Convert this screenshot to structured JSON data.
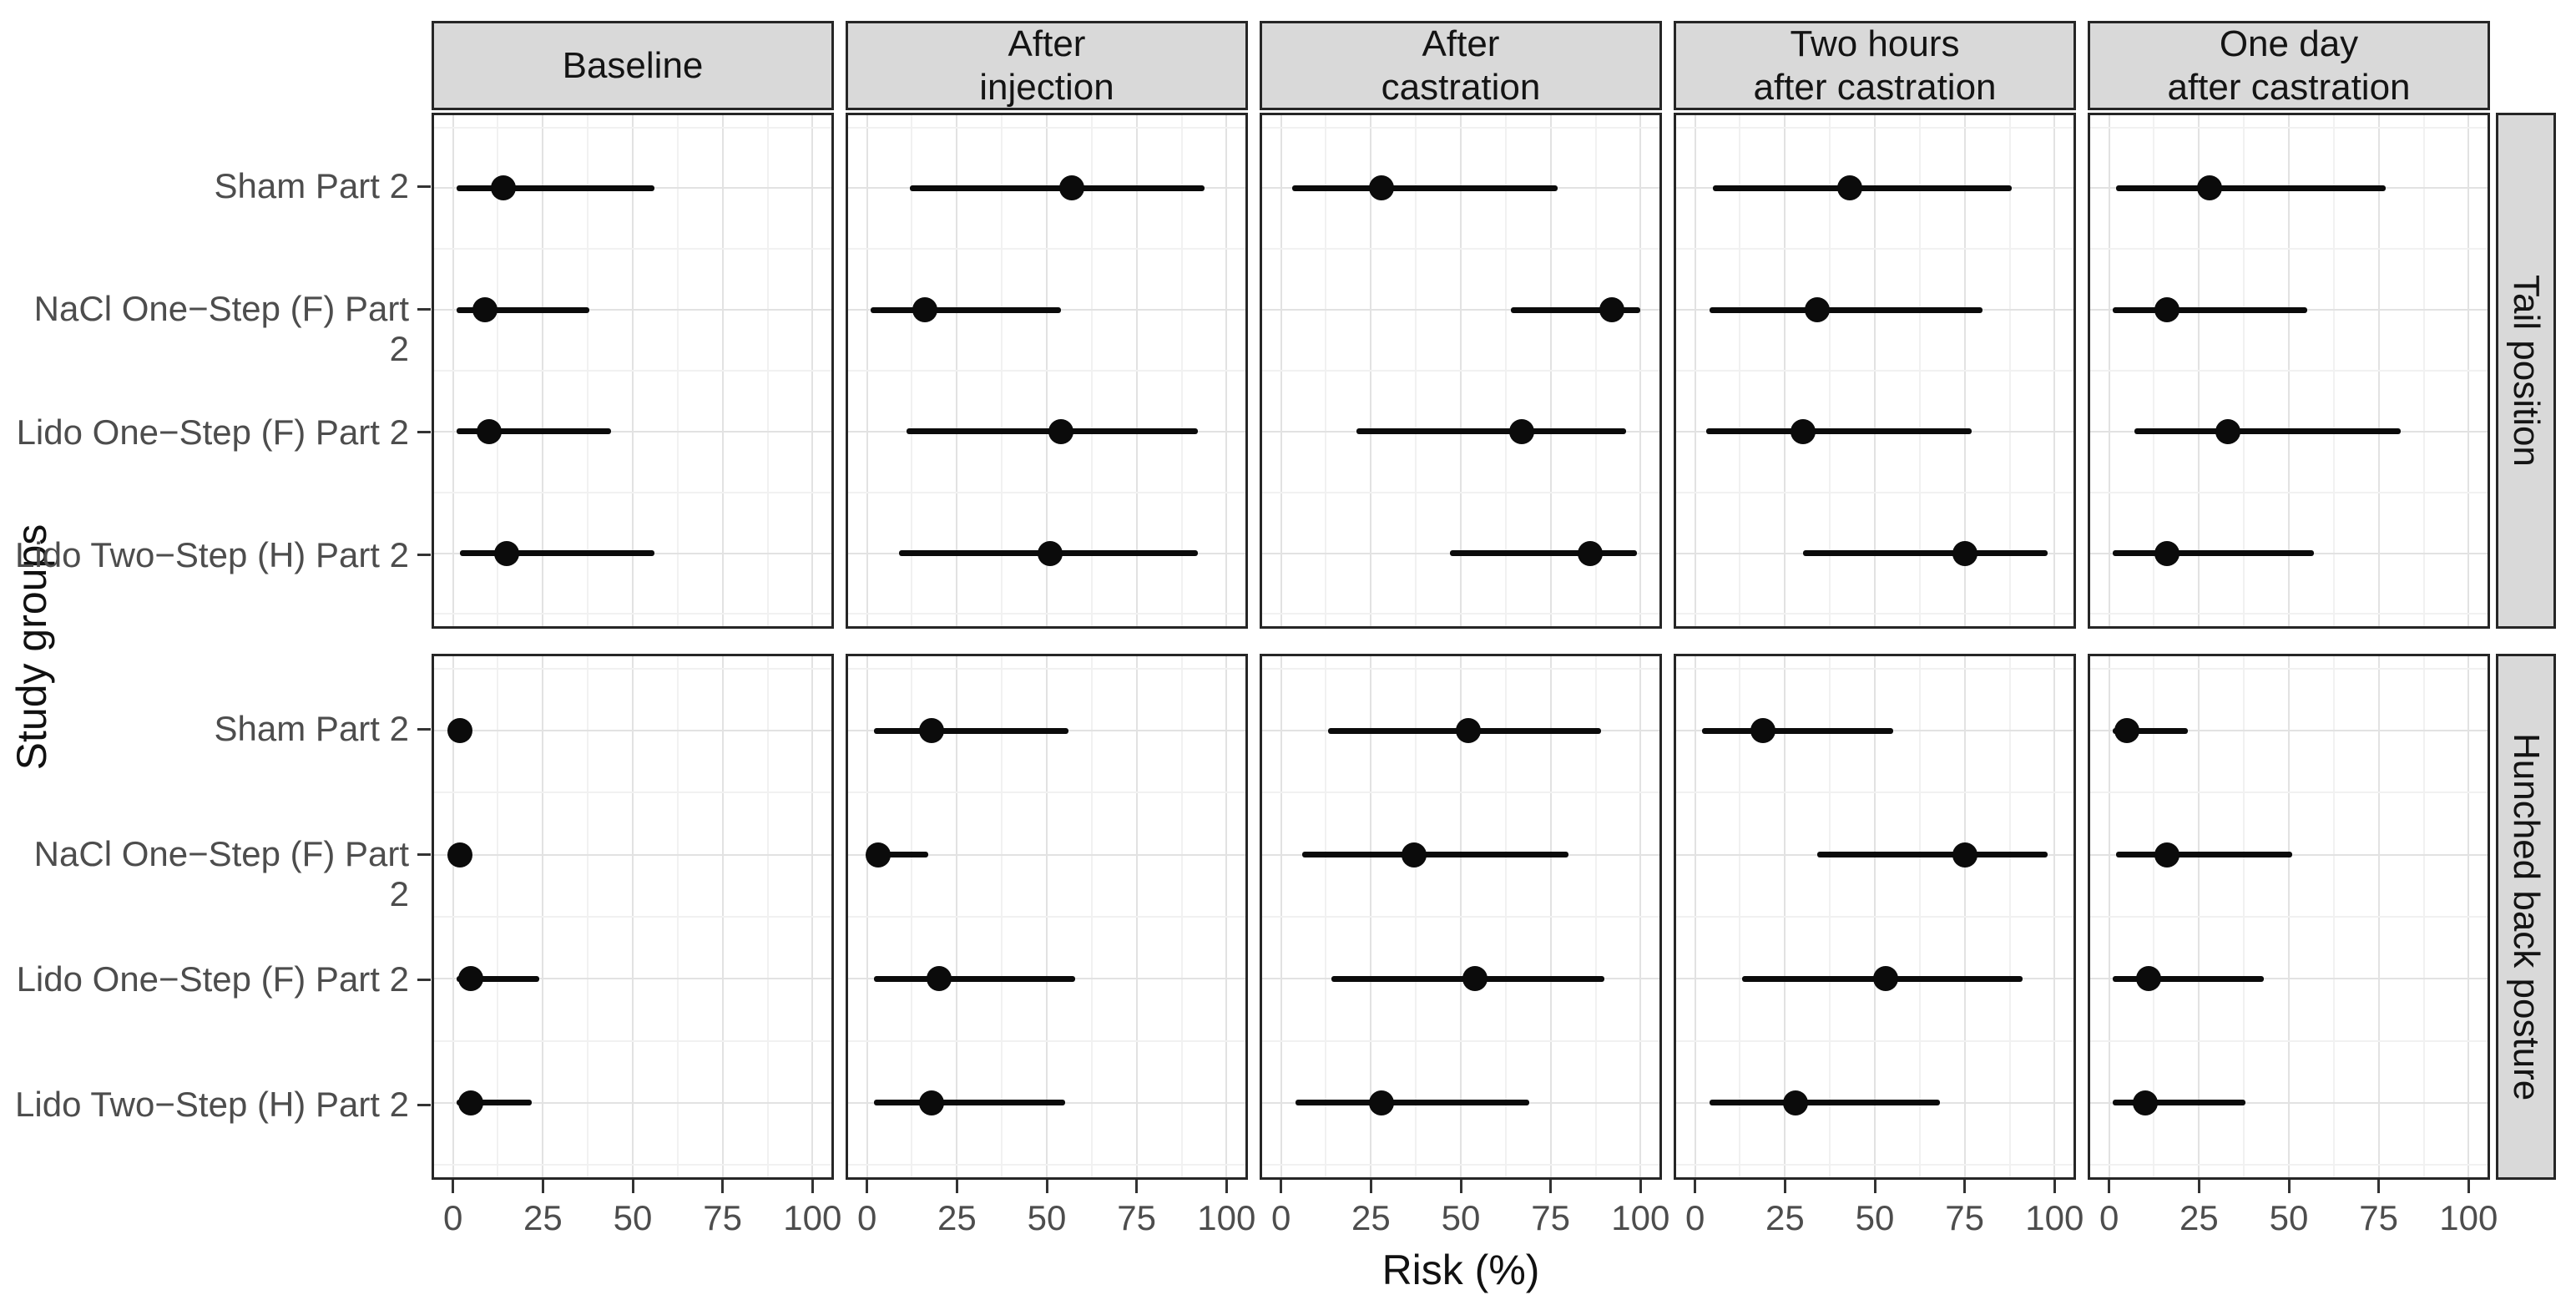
{
  "chart_data": {
    "type": "scatter",
    "subtype": "pointrange-forest",
    "title": "",
    "xlabel": "Risk (%)",
    "ylabel": "Study groups",
    "x_ticks": [
      0,
      25,
      50,
      75,
      100
    ],
    "xlim": [
      0,
      100
    ],
    "x_minor_step": 12.5,
    "grid": "on",
    "legend": "none",
    "col_facets": [
      "Baseline",
      "After\ninjection",
      "After\ncastration",
      "Two hours\nafter castration",
      "One day\nafter castration"
    ],
    "row_facets": [
      "Tail position",
      "Hunched back posture"
    ],
    "groups": [
      "Sham Part 2",
      "NaCl One−Step (F) Part 2",
      "Lido One−Step (F) Part 2",
      "Lido Two−Step (H) Part 2"
    ],
    "point_format": [
      "estimate",
      "ci_low",
      "ci_high"
    ],
    "values": {
      "Tail position": {
        "Baseline": [
          [
            14,
            1,
            56
          ],
          [
            9,
            1,
            38
          ],
          [
            10,
            1,
            44
          ],
          [
            15,
            2,
            56
          ]
        ],
        "After\ninjection": [
          [
            57,
            12,
            94
          ],
          [
            16,
            1,
            54
          ],
          [
            54,
            11,
            92
          ],
          [
            51,
            9,
            92
          ]
        ],
        "After\ncastration": [
          [
            28,
            3,
            77
          ],
          [
            92,
            64,
            100
          ],
          [
            67,
            21,
            96
          ],
          [
            86,
            47,
            99
          ]
        ],
        "Two hours\nafter castration": [
          [
            43,
            5,
            88
          ],
          [
            34,
            4,
            80
          ],
          [
            30,
            3,
            77
          ],
          [
            75,
            30,
            98
          ]
        ],
        "One day\nafter castration": [
          [
            28,
            2,
            77
          ],
          [
            16,
            1,
            55
          ],
          [
            33,
            7,
            81
          ],
          [
            16,
            1,
            57
          ]
        ]
      },
      "Hunched back posture": {
        "Baseline": [
          [
            2,
            0,
            4
          ],
          [
            2,
            0,
            4
          ],
          [
            5,
            1,
            24
          ],
          [
            5,
            1,
            22
          ]
        ],
        "After\ninjection": [
          [
            18,
            2,
            56
          ],
          [
            3,
            0,
            17
          ],
          [
            20,
            2,
            58
          ],
          [
            18,
            2,
            55
          ]
        ],
        "After\ncastration": [
          [
            52,
            13,
            89
          ],
          [
            37,
            6,
            80
          ],
          [
            54,
            14,
            90
          ],
          [
            28,
            4,
            69
          ]
        ],
        "Two hours\nafter castration": [
          [
            19,
            2,
            55
          ],
          [
            75,
            34,
            98
          ],
          [
            53,
            13,
            91
          ],
          [
            28,
            4,
            68
          ]
        ],
        "One day\nafter castration": [
          [
            5,
            1,
            22
          ],
          [
            16,
            2,
            51
          ],
          [
            11,
            1,
            43
          ],
          [
            10,
            1,
            38
          ]
        ]
      }
    },
    "colors": {
      "point": "#0b0b0b",
      "strip_bg": "#d9d9d9",
      "panel_border": "#262626",
      "grid_major": "#e2e2e2",
      "grid_minor": "#f1f1f1",
      "axis_text": "#4d4d4d",
      "title_text": "#111111"
    }
  }
}
